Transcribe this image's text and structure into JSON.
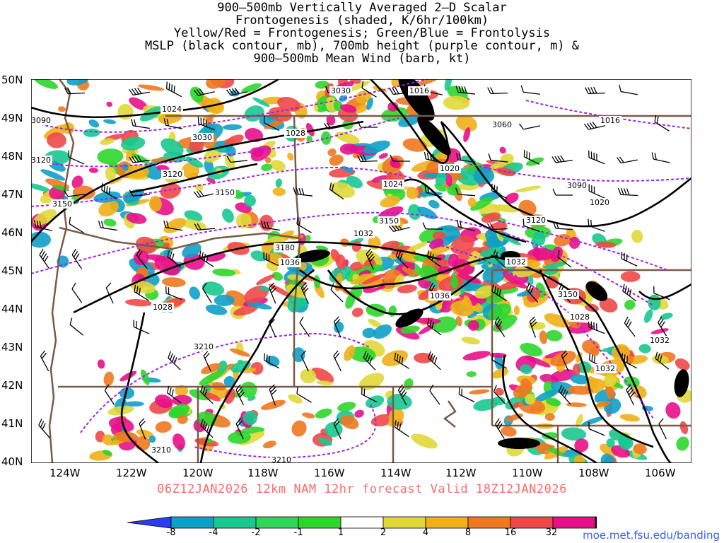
{
  "title_lines": [
    "900—500mb Vertically Averaged 2—D Scalar",
    "Frontogenesis (shaded, K/6hr/100km)",
    "Yellow/Red = Frontogenesis;  Green/Blue = Frontolysis",
    "MSLP (black contour, mb), 700mb height (purple contour, m) &",
    "900—500mb Mean Wind (barb, kt)"
  ],
  "lat_labels": [
    "50N",
    "49N",
    "48N",
    "47N",
    "46N",
    "45N",
    "44N",
    "43N",
    "42N",
    "41N",
    "40N"
  ],
  "lon_labels": [
    "124W",
    "122W",
    "120W",
    "118W",
    "116W",
    "114W",
    "112W",
    "110W",
    "108W",
    "106W"
  ],
  "valid_text": "06Z12JAN2026 12km NAM 12hr forecast Valid 18Z12JAN2026",
  "colorbar": {
    "labels": [
      "-8",
      "-4",
      "-2",
      "-1",
      "1",
      "2",
      "4",
      "8",
      "16",
      "32"
    ],
    "colors": [
      "#2a3cf0",
      "#0fa0c8",
      "#18c890",
      "#2fd65a",
      "#2cd62c",
      "#ffffff",
      "#e0d838",
      "#f0b018",
      "#f07820",
      "#f04848",
      "#e8108a",
      "#000000",
      "#a0a0a0"
    ]
  },
  "mslp_labels": [
    "1024",
    "1016",
    "1016",
    "1020",
    "1028",
    "1024",
    "1020",
    "1032",
    "1036",
    "1032",
    "1036",
    "1028",
    "1028",
    "1032",
    "1032"
  ],
  "height_labels": [
    "3090",
    "3030",
    "3120",
    "3150",
    "3150",
    "3180",
    "3210",
    "3210",
    "3210",
    "3060",
    "3090",
    "3120",
    "3150",
    "3150",
    "3030",
    "3120"
  ],
  "credit": "moe.met.fsu.edu/banding"
}
